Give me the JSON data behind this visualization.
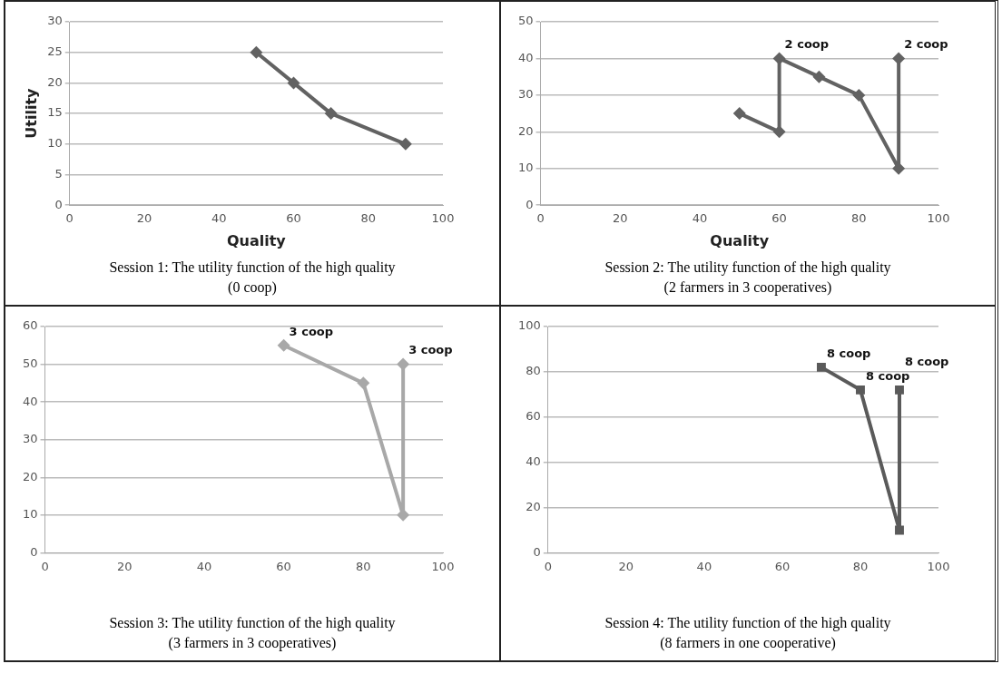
{
  "chart_data": [
    {
      "type": "line",
      "title": "Session 1: The utility function of the high quality (0 coop)",
      "xlabel": "Quality",
      "ylabel": "Utility",
      "xlim": [
        0,
        100
      ],
      "xticks": [
        0,
        20,
        40,
        60,
        80,
        100
      ],
      "ylim": [
        0,
        30
      ],
      "yticks": [
        0,
        5,
        10,
        15,
        20,
        25,
        30
      ],
      "grid": "y",
      "legend": false,
      "marker": "diamond",
      "series": [
        {
          "color": "#626262",
          "x": [
            50,
            60,
            70,
            90
          ],
          "values": [
            25,
            20,
            15,
            10
          ]
        }
      ]
    },
    {
      "type": "line",
      "title": "Session 2: The utility function of the high quality (2 farmers in 3 cooperatives)",
      "xlabel": "Quality",
      "xlim": [
        0,
        100
      ],
      "xticks": [
        0,
        20,
        40,
        60,
        80,
        100
      ],
      "ylim": [
        0,
        50
      ],
      "yticks": [
        0,
        10,
        20,
        30,
        40,
        50
      ],
      "grid": "y",
      "legend": false,
      "marker": "diamond",
      "series": [
        {
          "color": "#626262",
          "x": [
            50,
            60,
            60,
            70,
            80,
            90,
            90
          ],
          "values": [
            25,
            20,
            40,
            35,
            30,
            10,
            40
          ]
        }
      ],
      "annotations": [
        {
          "text": "2 coop",
          "x": 60,
          "y": 40
        },
        {
          "text": "2 coop",
          "x": 90,
          "y": 40
        }
      ]
    },
    {
      "type": "line",
      "title": "Session 3: The utility function of the high quality (3 farmers in 3 cooperatives)",
      "xlim": [
        0,
        100
      ],
      "xticks": [
        0,
        20,
        40,
        60,
        80,
        100
      ],
      "ylim": [
        0,
        60
      ],
      "yticks": [
        0,
        10,
        20,
        30,
        40,
        50,
        60
      ],
      "grid": "y",
      "legend": false,
      "marker": "diamond",
      "series": [
        {
          "color": "#a8a8a8",
          "x": [
            60,
            80,
            90,
            90
          ],
          "values": [
            55,
            45,
            10,
            50
          ]
        }
      ],
      "annotations": [
        {
          "text": "3 coop",
          "x": 60,
          "y": 55
        },
        {
          "text": "3 coop",
          "x": 90,
          "y": 50
        }
      ]
    },
    {
      "type": "line",
      "title": "Session 4: The utility function of the high quality (8 farmers in one cooperative)",
      "xlim": [
        0,
        100
      ],
      "xticks": [
        0,
        20,
        40,
        60,
        80,
        100
      ],
      "ylim": [
        0,
        100
      ],
      "yticks": [
        0,
        20,
        40,
        60,
        80,
        100
      ],
      "grid": "y",
      "legend": false,
      "marker": "square",
      "series": [
        {
          "color": "#5a5a5a",
          "x": [
            70,
            80,
            90,
            90
          ],
          "values": [
            82,
            72,
            10,
            72
          ]
        }
      ],
      "annotations": [
        {
          "text": "8 coop",
          "x": 70,
          "y": 82
        },
        {
          "text": "8 coop",
          "x": 80,
          "y": 72
        },
        {
          "text": "8 coop",
          "x": 90,
          "y": 72
        }
      ]
    }
  ]
}
